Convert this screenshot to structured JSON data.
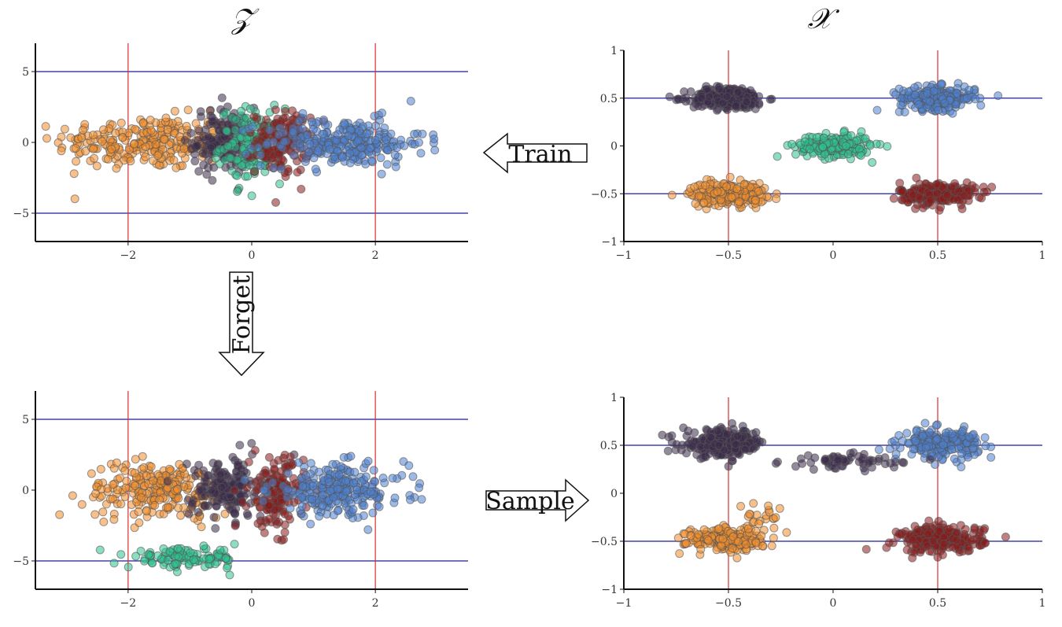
{
  "titles": {
    "latent": "𝒵",
    "data": "𝒳"
  },
  "arrows": {
    "train": "Train",
    "forget": "Forget",
    "sample": "Sample"
  },
  "colors": {
    "orange": "#f28e2b",
    "purple": "#3b2a4a",
    "green": "#2ec38f",
    "red": "#8b1a1a",
    "blue": "#4c7fd0",
    "hline": "#1f1f9f",
    "vline": "#d63030",
    "axis": "#111111"
  },
  "chart_data": [
    {
      "type": "scatter",
      "panel": "top-left",
      "title": "𝒵",
      "xlim": [
        -3.5,
        3.5
      ],
      "ylim": [
        -7,
        7
      ],
      "xticks": [
        -2,
        0,
        2
      ],
      "xtick_labels": [
        "−2",
        "0",
        "2"
      ],
      "yticks": [
        -5,
        0,
        5
      ],
      "ytick_labels": [
        "−5",
        "0",
        "5"
      ],
      "hlines": [
        -5,
        5
      ],
      "vlines": [
        -2,
        2
      ],
      "clusters": [
        {
          "color": "orange",
          "cx": -1.7,
          "cy": 0.0,
          "sx": 0.75,
          "sy": 0.95,
          "n": 260
        },
        {
          "color": "purple",
          "cx": -0.45,
          "cy": 0.1,
          "sx": 0.25,
          "sy": 1.2,
          "n": 150
        },
        {
          "color": "green",
          "cx": 0.0,
          "cy": -0.2,
          "sx": 0.25,
          "sy": 1.3,
          "n": 130
        },
        {
          "color": "red",
          "cx": 0.5,
          "cy": 0.0,
          "sx": 0.22,
          "sy": 1.1,
          "n": 150
        },
        {
          "color": "blue",
          "cx": 1.5,
          "cy": 0.0,
          "sx": 0.65,
          "sy": 0.85,
          "n": 260
        }
      ]
    },
    {
      "type": "scatter",
      "panel": "top-right",
      "title": "𝒳",
      "xlim": [
        -1,
        1
      ],
      "ylim": [
        -1,
        1
      ],
      "xticks": [
        -1,
        -0.5,
        0,
        0.5,
        1
      ],
      "xtick_labels": [
        "−1",
        "−0.5",
        "0",
        "0.5",
        "1"
      ],
      "yticks": [
        -1,
        -0.5,
        0,
        0.5,
        1
      ],
      "ytick_labels": [
        "−1",
        "−0.5",
        "0",
        "0.5",
        "1"
      ],
      "hlines": [
        -0.5,
        0.5
      ],
      "vlines": [
        -0.5,
        0.5
      ],
      "clusters": [
        {
          "color": "purple",
          "cx": -0.5,
          "cy": 0.5,
          "sx": 0.09,
          "sy": 0.06,
          "n": 220
        },
        {
          "color": "blue",
          "cx": 0.5,
          "cy": 0.5,
          "sx": 0.09,
          "sy": 0.06,
          "n": 220
        },
        {
          "color": "green",
          "cx": 0.0,
          "cy": 0.0,
          "sx": 0.09,
          "sy": 0.06,
          "n": 200
        },
        {
          "color": "orange",
          "cx": -0.5,
          "cy": -0.5,
          "sx": 0.09,
          "sy": 0.06,
          "n": 220
        },
        {
          "color": "red",
          "cx": 0.5,
          "cy": -0.5,
          "sx": 0.09,
          "sy": 0.06,
          "n": 220
        }
      ]
    },
    {
      "type": "scatter",
      "panel": "bottom-left",
      "xlim": [
        -3.5,
        3.5
      ],
      "ylim": [
        -7,
        7
      ],
      "xticks": [
        -2,
        0,
        2
      ],
      "xtick_labels": [
        "−2",
        "0",
        "2"
      ],
      "yticks": [
        -5,
        0,
        5
      ],
      "ytick_labels": [
        "−5",
        "0",
        "5"
      ],
      "hlines": [
        -5,
        5
      ],
      "vlines": [
        -2,
        2
      ],
      "clusters": [
        {
          "color": "orange",
          "cx": -1.5,
          "cy": 0.0,
          "sx": 0.6,
          "sy": 1.0,
          "n": 240
        },
        {
          "color": "purple",
          "cx": -0.4,
          "cy": 0.1,
          "sx": 0.3,
          "sy": 1.1,
          "n": 170
        },
        {
          "color": "red",
          "cx": 0.4,
          "cy": -0.3,
          "sx": 0.22,
          "sy": 1.3,
          "n": 150
        },
        {
          "color": "blue",
          "cx": 1.4,
          "cy": 0.0,
          "sx": 0.55,
          "sy": 0.9,
          "n": 250
        },
        {
          "color": "green",
          "cx": -1.1,
          "cy": -4.8,
          "sx": 0.45,
          "sy": 0.35,
          "n": 110
        }
      ]
    },
    {
      "type": "scatter",
      "panel": "bottom-right",
      "xlim": [
        -1,
        1
      ],
      "ylim": [
        -1,
        1
      ],
      "xticks": [
        -1,
        -0.5,
        0,
        0.5,
        1
      ],
      "xtick_labels": [
        "−1",
        "−0.5",
        "0",
        "0.5",
        "1"
      ],
      "yticks": [
        -1,
        -0.5,
        0,
        0.5,
        1
      ],
      "ytick_labels": [
        "−1",
        "−0.5",
        "0",
        "0.5",
        "1"
      ],
      "hlines": [
        -0.5,
        0.5
      ],
      "vlines": [
        -0.5,
        0.5
      ],
      "clusters": [
        {
          "color": "purple",
          "cx": -0.52,
          "cy": 0.52,
          "sx": 0.1,
          "sy": 0.07,
          "n": 240
        },
        {
          "color": "blue",
          "cx": 0.52,
          "cy": 0.52,
          "sx": 0.09,
          "sy": 0.07,
          "n": 220
        },
        {
          "color": "orange",
          "cx": -0.52,
          "cy": -0.48,
          "sx": 0.09,
          "sy": 0.06,
          "n": 210
        },
        {
          "color": "red",
          "cx": 0.52,
          "cy": -0.48,
          "sx": 0.1,
          "sy": 0.07,
          "n": 240
        },
        {
          "color": "purple",
          "cx": 0.05,
          "cy": 0.33,
          "sx": 0.14,
          "sy": 0.04,
          "n": 60
        },
        {
          "color": "orange",
          "cx": -0.35,
          "cy": -0.3,
          "sx": 0.05,
          "sy": 0.08,
          "n": 25
        }
      ]
    }
  ]
}
